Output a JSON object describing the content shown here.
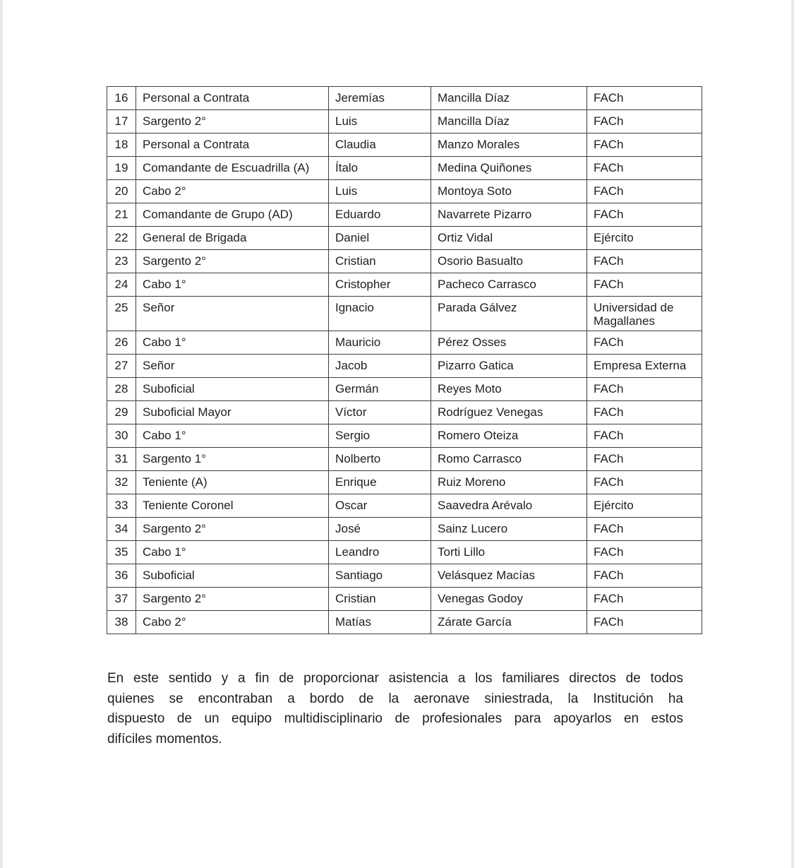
{
  "colors": {
    "page_background": "#ffffff",
    "text": "#1f1f1f",
    "table_border": "#3d3d3d",
    "page_edge": "#e7e7ee"
  },
  "table": {
    "rows": [
      {
        "num": "16",
        "rank": "Personal a Contrata",
        "first_name": "Jeremías",
        "last_name": "Mancilla Díaz",
        "institution": "FACh"
      },
      {
        "num": "17",
        "rank": "Sargento 2°",
        "first_name": "Luis",
        "last_name": "Mancilla Díaz",
        "institution": "FACh"
      },
      {
        "num": "18",
        "rank": "Personal a Contrata",
        "first_name": "Claudia",
        "last_name": "Manzo Morales",
        "institution": "FACh"
      },
      {
        "num": "19",
        "rank": "Comandante de Escuadrilla (A)",
        "first_name": "Ítalo",
        "last_name": "Medina Quiñones",
        "institution": "FACh"
      },
      {
        "num": "20",
        "rank": "Cabo 2°",
        "first_name": "Luis",
        "last_name": "Montoya Soto",
        "institution": "FACh"
      },
      {
        "num": "21",
        "rank": "Comandante de Grupo (AD)",
        "first_name": "Eduardo",
        "last_name": "Navarrete Pizarro",
        "institution": "FACh"
      },
      {
        "num": "22",
        "rank": "General de Brigada",
        "first_name": "Daniel",
        "last_name": "Ortiz Vidal",
        "institution": "Ejército"
      },
      {
        "num": "23",
        "rank": "Sargento 2°",
        "first_name": "Cristian",
        "last_name": "Osorio Basualto",
        "institution": "FACh"
      },
      {
        "num": "24",
        "rank": "Cabo 1°",
        "first_name": "Cristopher",
        "last_name": "Pacheco Carrasco",
        "institution": "FACh"
      },
      {
        "num": "25",
        "rank": "Señor",
        "first_name": "Ignacio",
        "last_name": "Parada Gálvez",
        "institution": "Universidad de Magallanes"
      },
      {
        "num": "26",
        "rank": "Cabo 1°",
        "first_name": "Mauricio",
        "last_name": "Pérez Osses",
        "institution": "FACh"
      },
      {
        "num": "27",
        "rank": "Señor",
        "first_name": "Jacob",
        "last_name": "Pizarro Gatica",
        "institution": "Empresa Externa"
      },
      {
        "num": "28",
        "rank": "Suboficial",
        "first_name": "Germán",
        "last_name": "Reyes Moto",
        "institution": "FACh"
      },
      {
        "num": "29",
        "rank": "Suboficial Mayor",
        "first_name": "Víctor",
        "last_name": "Rodríguez Venegas",
        "institution": "FACh"
      },
      {
        "num": "30",
        "rank": "Cabo 1°",
        "first_name": "Sergio",
        "last_name": "Romero Oteiza",
        "institution": "FACh"
      },
      {
        "num": "31",
        "rank": "Sargento 1°",
        "first_name": "Nolberto",
        "last_name": "Romo Carrasco",
        "institution": "FACh"
      },
      {
        "num": "32",
        "rank": "Teniente (A)",
        "first_name": "Enrique",
        "last_name": "Ruiz Moreno",
        "institution": "FACh"
      },
      {
        "num": "33",
        "rank": "Teniente Coronel",
        "first_name": "Oscar",
        "last_name": "Saavedra Arévalo",
        "institution": "Ejército"
      },
      {
        "num": "34",
        "rank": "Sargento 2°",
        "first_name": "José",
        "last_name": "Sainz Lucero",
        "institution": "FACh"
      },
      {
        "num": "35",
        "rank": "Cabo 1°",
        "first_name": "Leandro",
        "last_name": "Torti Lillo",
        "institution": "FACh"
      },
      {
        "num": "36",
        "rank": "Suboficial",
        "first_name": "Santiago",
        "last_name": "Velásquez Macías",
        "institution": "FACh"
      },
      {
        "num": "37",
        "rank": "Sargento 2°",
        "first_name": "Cristian",
        "last_name": "Venegas Godoy",
        "institution": "FACh"
      },
      {
        "num": "38",
        "rank": "Cabo 2°",
        "first_name": "Matías",
        "last_name": "Zárate García",
        "institution": "FACh"
      }
    ]
  },
  "paragraph": {
    "lines": [
      "En este sentido y a fin de proporcionar asistencia a los familiares directos de todos",
      "quienes se encontraban a bordo de la aeronave siniestrada, la Institución ha",
      "dispuesto de un equipo multidisciplinario de profesionales para apoyarlos en estos",
      "difíciles momentos."
    ]
  }
}
